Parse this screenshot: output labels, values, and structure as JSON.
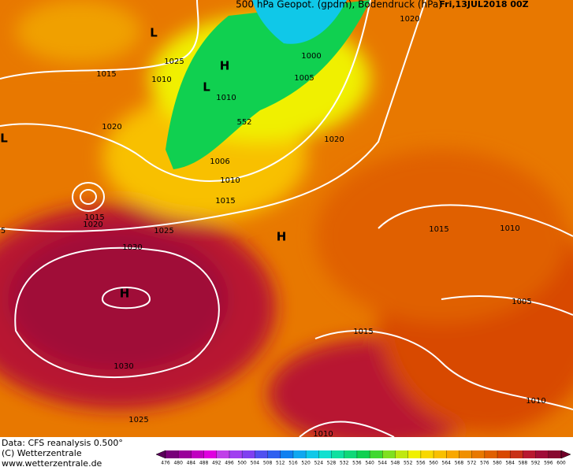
{
  "header": {
    "title": "500 hPa Geopot. (gpdm), Bodendruck (hPa)",
    "date": "Fri,13JUL2018 00Z"
  },
  "isobar_labels": [
    1025,
    1015,
    1010,
    1020,
    1000,
    1005,
    1010,
    552,
    1020,
    1020,
    1006,
    1010,
    1015,
    1015,
    1020,
    1025,
    1015,
    1010,
    1030,
    1005,
    1015,
    1030,
    1025,
    1010,
    1010,
    5
  ],
  "pressure_centers": [
    "L",
    "H",
    "L",
    "L",
    "H",
    "H"
  ],
  "footer": {
    "source": "Data: CFS reanalysis 0.500°",
    "copyright": "(C) Wetterzentrale",
    "url": "www.wetterzentrale.de"
  },
  "colorbar": {
    "ticks": [
      476,
      480,
      484,
      488,
      492,
      496,
      500,
      504,
      508,
      512,
      516,
      520,
      524,
      528,
      532,
      536,
      540,
      544,
      548,
      552,
      556,
      560,
      564,
      568,
      572,
      576,
      580,
      584,
      588,
      592,
      596,
      600
    ],
    "colors": [
      "#5a005a",
      "#78007a",
      "#9a009a",
      "#c000c0",
      "#e000e0",
      "#c040e8",
      "#a040f0",
      "#8040f0",
      "#5050f0",
      "#3060f0",
      "#1080f0",
      "#10a8f0",
      "#10c8e8",
      "#10e0d0",
      "#10e0a0",
      "#10d878",
      "#10d050",
      "#40d830",
      "#80e020",
      "#c0e810",
      "#f0f000",
      "#f8d800",
      "#f8c000",
      "#f8a800",
      "#f09000",
      "#e87800",
      "#e06000",
      "#d84800",
      "#c83018",
      "#b81830",
      "#a00c38",
      "#880830",
      "#700028"
    ]
  }
}
